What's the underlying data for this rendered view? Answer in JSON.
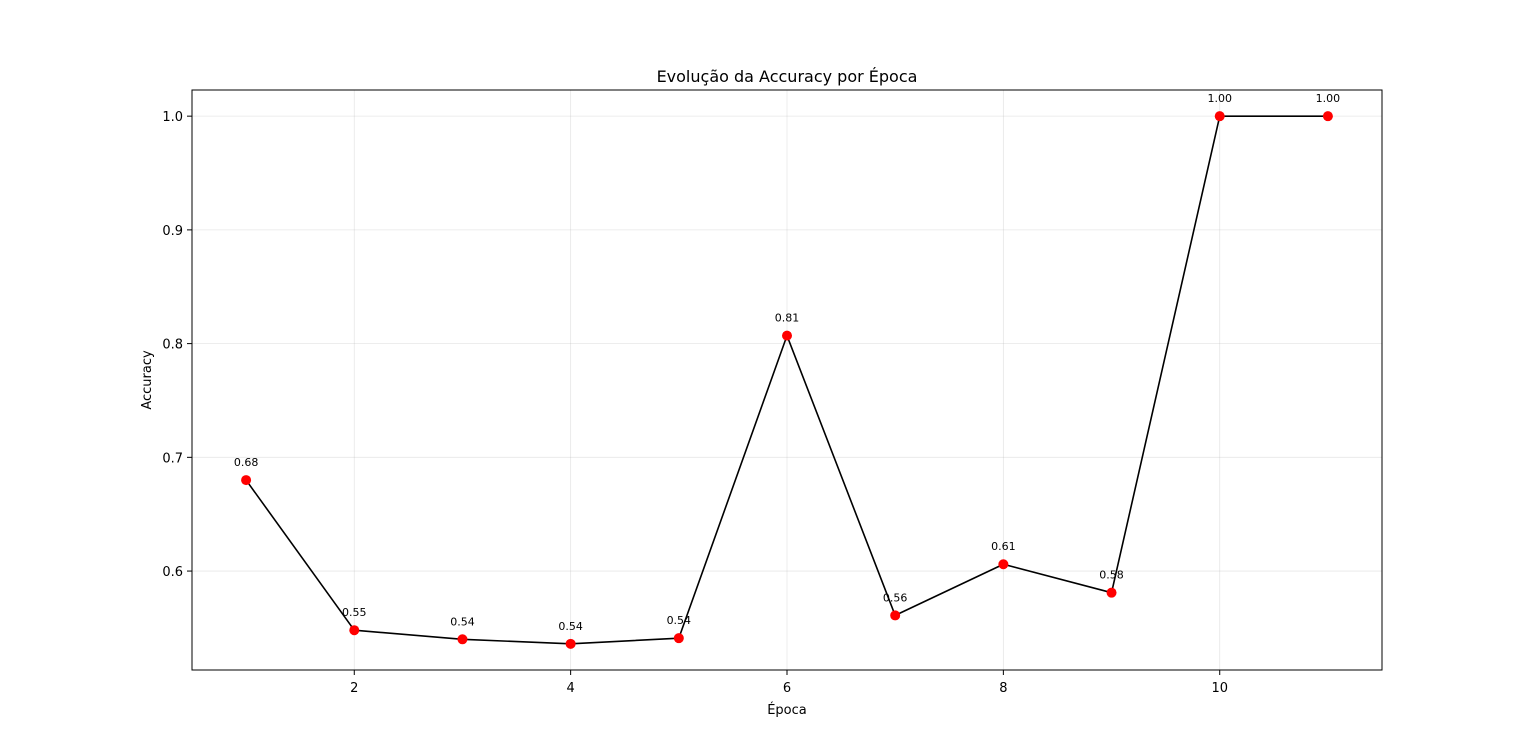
{
  "chart_data": {
    "type": "line",
    "title": "Evolução da Accuracy por Época",
    "xlabel": "Época",
    "ylabel": "Accuracy",
    "x": [
      1,
      2,
      3,
      4,
      5,
      6,
      7,
      8,
      9,
      10,
      11
    ],
    "series": [
      {
        "values": [
          0.68,
          0.548,
          0.54,
          0.536,
          0.541,
          0.807,
          0.561,
          0.606,
          0.581,
          1.0,
          1.0
        ],
        "line_color": "#000000",
        "marker_color": "#ff0000"
      }
    ],
    "data_labels": [
      "0.68",
      "0.55",
      "0.54",
      "0.54",
      "0.54",
      "0.81",
      "0.56",
      "0.61",
      "0.58",
      "1.00",
      "1.00"
    ],
    "x_ticks": [
      2,
      4,
      6,
      8,
      10
    ],
    "x_tick_labels": [
      "2",
      "4",
      "6",
      "8",
      "10"
    ],
    "y_ticks": [
      0.6,
      0.7,
      0.8,
      0.9,
      1.0
    ],
    "y_tick_labels": [
      "0.6",
      "0.7",
      "0.8",
      "0.9",
      "1.0"
    ],
    "xlim": [
      0.5,
      11.5
    ],
    "ylim": [
      0.513,
      1.023
    ],
    "grid": true
  }
}
